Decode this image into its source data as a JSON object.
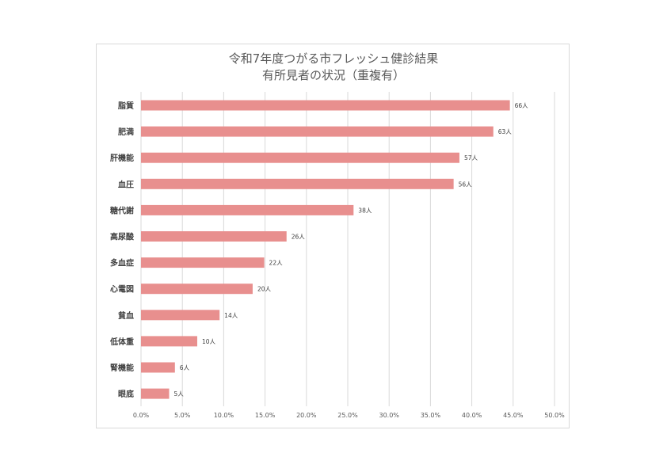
{
  "chart_data": {
    "type": "bar",
    "orientation": "horizontal",
    "title": "令和7年度つがる市フレッシュ健診結果",
    "subtitle": "有所見者の状況（重複有）",
    "categories": [
      "脂質",
      "肥満",
      "肝機能",
      "血圧",
      "糖代謝",
      "高尿酸",
      "多血症",
      "心電図",
      "貧血",
      "低体重",
      "腎機能",
      "眼底"
    ],
    "values": [
      44.6,
      42.6,
      38.5,
      37.8,
      25.7,
      17.6,
      14.9,
      13.5,
      9.5,
      6.8,
      4.1,
      3.4
    ],
    "data_labels": [
      "66人",
      "63人",
      "57人",
      "56人",
      "38人",
      "26人",
      "22人",
      "20人",
      "14人",
      "10人",
      "6人",
      "5人"
    ],
    "xlim": [
      0,
      50
    ],
    "xticks": [
      "0.0%",
      "5.0%",
      "10.0%",
      "15.0%",
      "20.0%",
      "25.0%",
      "30.0%",
      "35.0%",
      "40.0%",
      "45.0%",
      "50.0%"
    ],
    "grid": true,
    "legend": "none",
    "bar_color": "#e88f8e",
    "xlabel": "",
    "ylabel": ""
  }
}
